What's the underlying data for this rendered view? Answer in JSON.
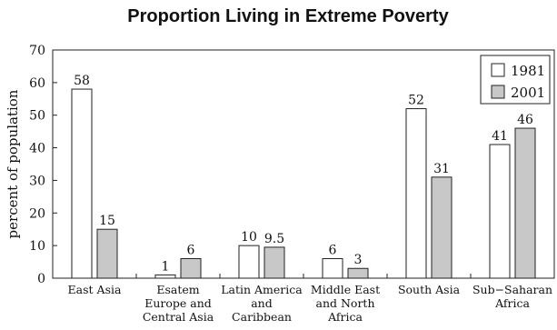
{
  "chart_data": {
    "type": "bar",
    "title": "Proportion Living in Extreme Poverty",
    "xlabel": "",
    "ylabel": "percent of population",
    "ylim": [
      0,
      70
    ],
    "yticks": [
      "0",
      "10",
      "20",
      "30",
      "40",
      "50",
      "60",
      "70"
    ],
    "grid": false,
    "legend_position": "top-right",
    "categories": [
      [
        "East  Asia"
      ],
      [
        "Esatem",
        "Europe and",
        "Central Asia"
      ],
      [
        "Latin America",
        "and",
        "Caribbean"
      ],
      [
        "Middle East",
        "and North",
        "Africa"
      ],
      [
        "South  Asia"
      ],
      [
        "Sub−Saharan",
        "Africa"
      ]
    ],
    "series": [
      {
        "name": "1981",
        "values": [
          58,
          1,
          10,
          6,
          52,
          41
        ],
        "labels": [
          "58",
          "1",
          "10",
          "6",
          "52",
          "41"
        ],
        "color": "#ffffff"
      },
      {
        "name": "2001",
        "values": [
          15,
          6,
          9.5,
          3,
          31,
          46
        ],
        "labels": [
          "15",
          "6",
          "9.5",
          "3",
          "31",
          "46"
        ],
        "color": "#c8c8c8"
      }
    ]
  }
}
